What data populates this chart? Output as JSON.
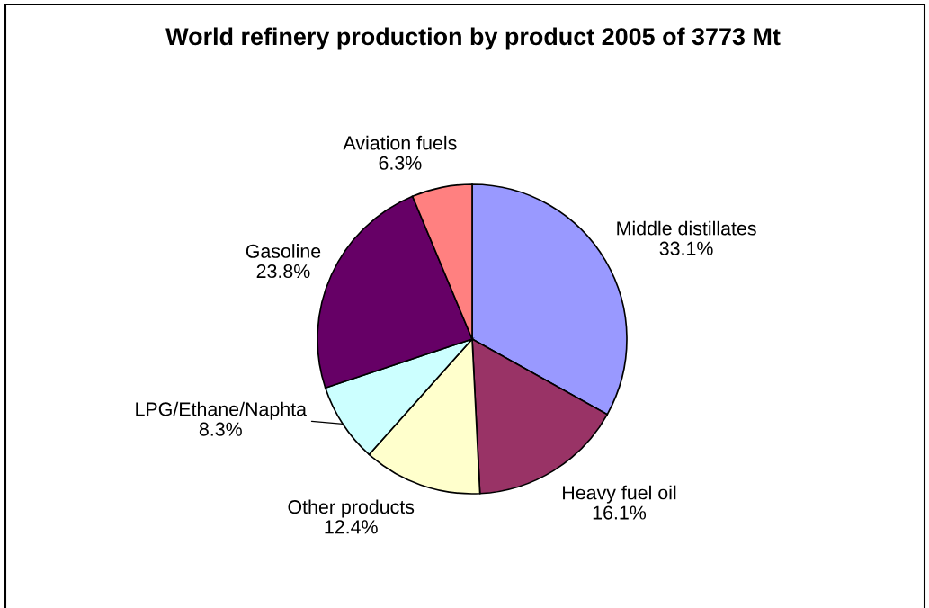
{
  "chart_data": {
    "type": "pie",
    "title": "World refinery production by product 2005 of 3773 Mt",
    "categories": [
      "Middle distillates",
      "Heavy fuel oil",
      "Other products",
      "LPG/Ethane/Naphta",
      "Gasoline",
      "Aviation fuels"
    ],
    "values": [
      33.1,
      16.1,
      12.4,
      8.3,
      23.8,
      6.3
    ],
    "colors": [
      "#9999ff",
      "#993366",
      "#ffffcc",
      "#ccffff",
      "#660066",
      "#ff8080"
    ],
    "value_labels": [
      "33.1%",
      "16.1%",
      "12.4%",
      "8.3%",
      "23.8%",
      "6.3%"
    ]
  }
}
